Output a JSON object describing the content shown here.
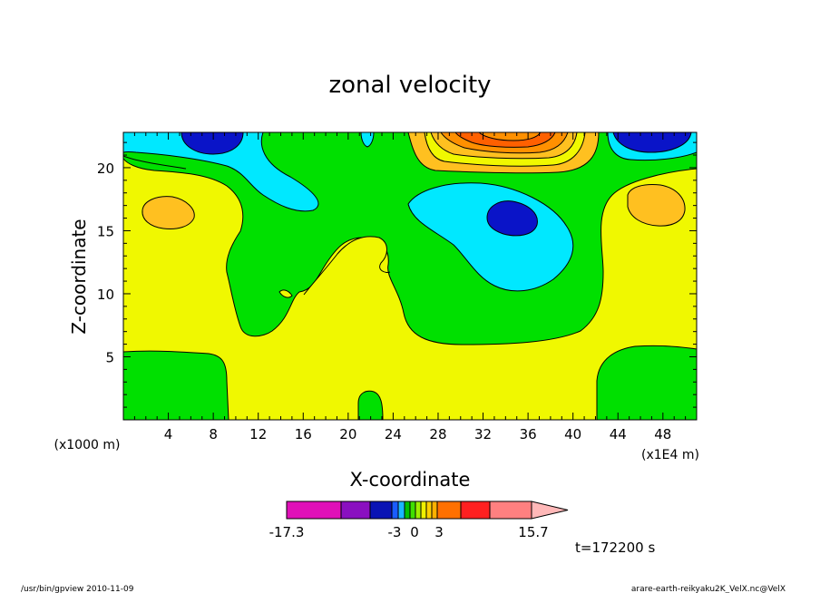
{
  "chart_data": {
    "type": "contour",
    "title": "zonal velocity",
    "xlabel": "X-coordinate",
    "ylabel": "Z-coordinate",
    "x_unit_label": "(x1000 m)",
    "x_scale_label": "(x1E4 m)",
    "x_ticks": [
      4,
      8,
      12,
      16,
      20,
      24,
      28,
      32,
      36,
      40,
      44,
      48
    ],
    "y_ticks": [
      5,
      10,
      15,
      20
    ],
    "xlim": [
      0,
      51
    ],
    "ylim": [
      0,
      22.8
    ],
    "colorbar": {
      "levels": [
        -17.3,
        -3,
        0,
        3,
        15.7
      ],
      "tick_labels": [
        "-17.3",
        "-3",
        "0",
        "3",
        "15.7"
      ],
      "colors": [
        "#e010b8",
        "#8a10c0",
        "#0a14b4",
        "#1a5cff",
        "#1ab6ff",
        "#00c000",
        "#40e000",
        "#a0f000",
        "#f0f000",
        "#ffd000",
        "#ffb000",
        "#ff7000",
        "#ff2020",
        "#ff8080",
        "#ffb8b8"
      ]
    },
    "regions": [
      {
        "level": "negative-strong",
        "color": "#0a14b4",
        "center": [
          34.5,
          16
        ]
      },
      {
        "level": "negative-strong",
        "color": "#0a14b4",
        "center": [
          7.5,
          22.5
        ]
      },
      {
        "level": "negative-strong",
        "color": "#0a14b4",
        "center": [
          48,
          22.5
        ]
      },
      {
        "level": "positive-strong",
        "color": "#ff7000",
        "center": [
          34,
          22.5
        ]
      },
      {
        "level": "positive-weak",
        "color": "#ffc000",
        "center": [
          4,
          16.5
        ]
      },
      {
        "level": "positive-weak",
        "color": "#ffc000",
        "center": [
          47,
          17
        ]
      }
    ]
  },
  "annotation_time": "t=172200 s",
  "footer_left": "/usr/bin/gpview   2010-11-09",
  "footer_right": "arare-earth-reikyaku2K_VelX.nc@VelX",
  "colors": {
    "yellow": "#f0f800",
    "green": "#00e000",
    "cyan": "#00e8ff",
    "blue": "#0a14c8",
    "orange_light": "#ffc020",
    "orange": "#ff9000",
    "orange_dark": "#ff6000"
  }
}
